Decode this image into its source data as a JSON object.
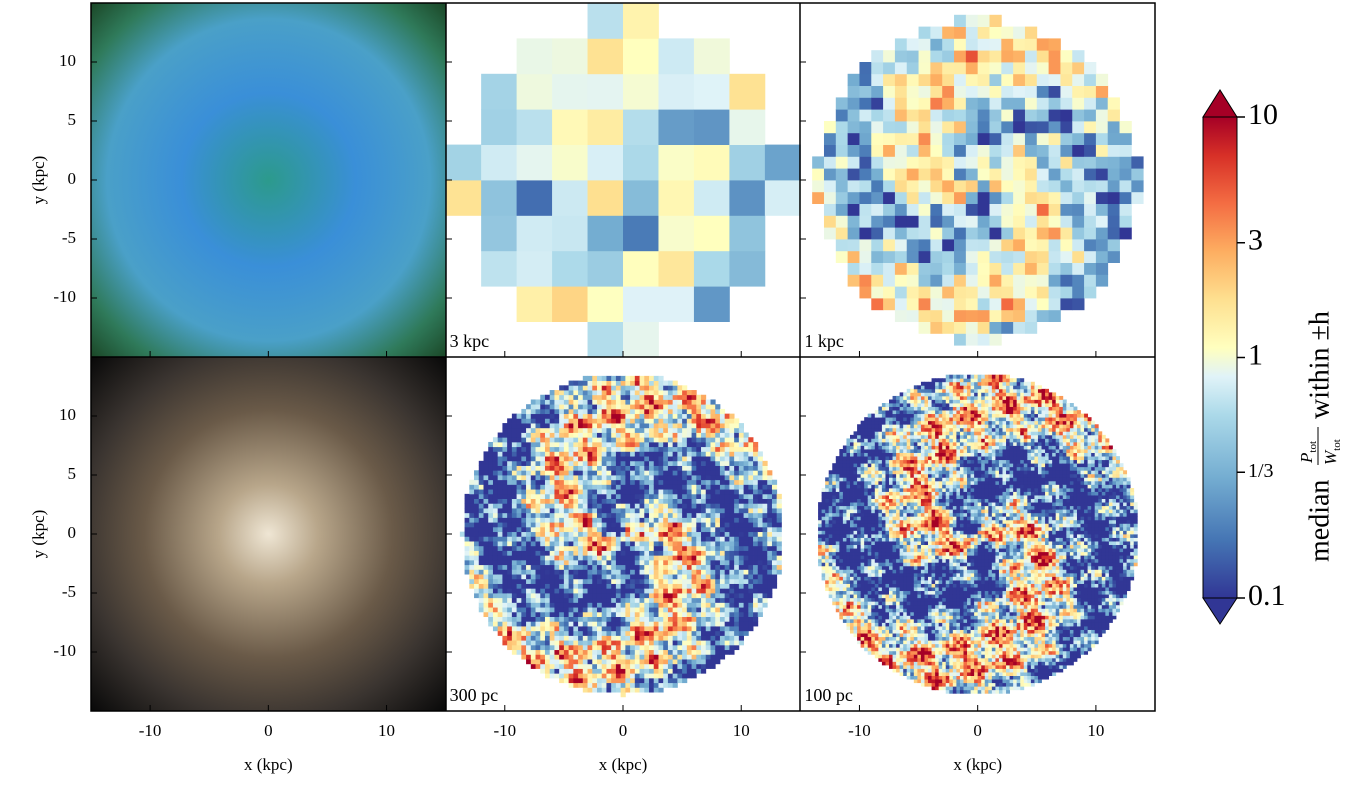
{
  "chart_data": {
    "type": "map-grid",
    "xlabel": "x (kpc)",
    "ylabel": "y (kpc)",
    "xlim": [
      -15,
      15
    ],
    "ylim": [
      -15,
      15
    ],
    "xticks": [
      -10,
      0,
      10
    ],
    "yticks": [
      -10,
      -5,
      0,
      5,
      10
    ],
    "panel_labels": [
      "3 kpc",
      "1 kpc",
      "300 pc",
      "100 pc"
    ],
    "colorbar": {
      "scale": "log",
      "lim": [
        0.1,
        10
      ],
      "ticks": [
        0.1,
        {
          "value": 0.3333,
          "label": "1/3"
        },
        1,
        3,
        10
      ],
      "label": {
        "prefix": "median",
        "numerator": "P",
        "numerator_sub": "tot",
        "denominator": "W",
        "denominator_sub": "tot",
        "suffix": "within ±h"
      }
    }
  }
}
